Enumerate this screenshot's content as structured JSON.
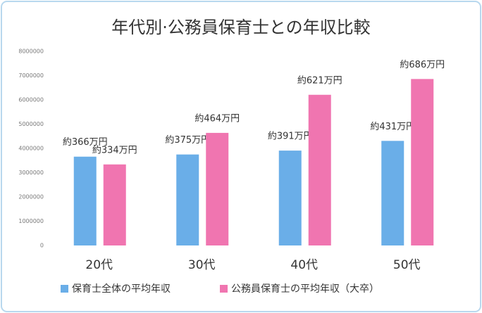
{
  "chart_data": {
    "type": "bar",
    "title": "年代別·公務員保育士との年収比較",
    "categories": [
      "20代",
      "30代",
      "40代",
      "50代"
    ],
    "series": [
      {
        "name": "保育士全体の平均年収",
        "color": "#6aaee8",
        "values": [
          3660000,
          3750000,
          3910000,
          4310000
        ],
        "value_labels": [
          "約366万円",
          "約375万円",
          "約391万円",
          "約431万円"
        ]
      },
      {
        "name": "公務員保育士の平均年収（大卒）",
        "color": "#f075b0",
        "values": [
          3340000,
          4640000,
          6210000,
          6860000
        ],
        "value_labels": [
          "約334万円",
          "約464万円",
          "約621万円",
          "約686万円"
        ]
      }
    ],
    "ylim": [
      0,
      8000000
    ],
    "yticks": [
      0,
      1000000,
      2000000,
      3000000,
      4000000,
      5000000,
      6000000,
      7000000,
      8000000
    ],
    "grid": false,
    "legend": "bottom"
  }
}
